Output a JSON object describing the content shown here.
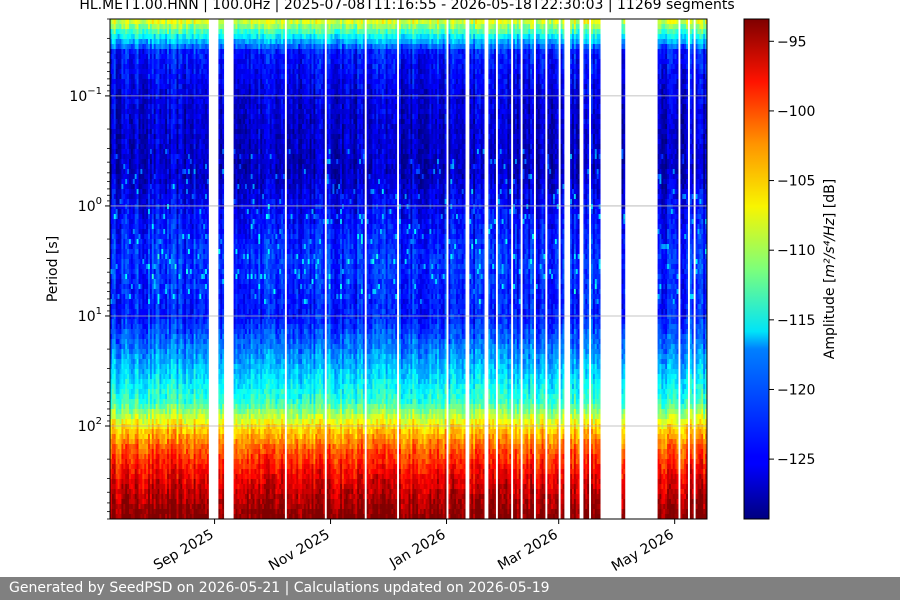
{
  "chart_data": {
    "type": "heatmap",
    "title": "HL.MET1.00.HNN | 100.0Hz | 2025-07-08T11:16:55 - 2026-05-18T22:30:03 | 11269 segments",
    "x_axis": {
      "type": "date",
      "range": [
        "2025-07-08",
        "2026-05-18"
      ],
      "ticks": [
        {
          "label": "Sep 2025",
          "date": "2025-09-01"
        },
        {
          "label": "Nov 2025",
          "date": "2025-11-01"
        },
        {
          "label": "Jan 2026",
          "date": "2026-01-01"
        },
        {
          "label": "Mar 2026",
          "date": "2026-03-01"
        },
        {
          "label": "May 2026",
          "date": "2026-05-01"
        }
      ],
      "tick_label_rotation": "30deg"
    },
    "y_axis": {
      "label": "Period [s]",
      "scale": "log",
      "inverted": true,
      "range": [
        0.02,
        700
      ],
      "ticks": [
        {
          "value": 0.1,
          "base": "10",
          "exp": "−1"
        },
        {
          "value": 1,
          "base": "10",
          "exp": "0"
        },
        {
          "value": 10,
          "base": "10",
          "exp": "1"
        },
        {
          "value": 100,
          "base": "10",
          "exp": "2"
        }
      ]
    },
    "grid": true,
    "colorbar": {
      "label_prefix": "Amplitude [",
      "label_math": "m²/s⁴/Hz",
      "label_suffix": "] [dB]",
      "colormap": "jet",
      "range": [
        -129.3,
        -93.4
      ],
      "ticks": [
        -95,
        -100,
        -105,
        -110,
        -115,
        -120,
        -125
      ],
      "tick_labels": [
        "−95",
        "−100",
        "−105",
        "−110",
        "−115",
        "−120",
        "−125"
      ]
    },
    "gaps": [
      [
        "2025-08-29",
        "2025-09-03"
      ],
      [
        "2025-09-06",
        "2025-09-11"
      ],
      [
        "2025-10-08",
        "2025-10-09"
      ],
      [
        "2025-10-29",
        "2025-10-30"
      ],
      [
        "2025-11-19",
        "2025-11-20"
      ],
      [
        "2025-12-06",
        "2025-12-07"
      ],
      [
        "2026-01-01",
        "2026-01-02"
      ],
      [
        "2026-01-11",
        "2026-01-13"
      ],
      [
        "2026-01-21",
        "2026-01-23"
      ],
      [
        "2026-01-27",
        "2026-01-28"
      ],
      [
        "2026-02-04",
        "2026-02-05"
      ],
      [
        "2026-02-09",
        "2026-02-10"
      ],
      [
        "2026-02-16",
        "2026-02-17"
      ],
      [
        "2026-02-22",
        "2026-02-23"
      ],
      [
        "2026-03-01",
        "2026-03-02"
      ],
      [
        "2026-03-04",
        "2026-03-07"
      ],
      [
        "2026-03-12",
        "2026-03-14"
      ],
      [
        "2026-03-17",
        "2026-03-18"
      ],
      [
        "2026-03-23",
        "2026-04-03"
      ],
      [
        "2026-04-05",
        "2026-04-22"
      ],
      [
        "2026-05-03",
        "2026-05-04"
      ],
      [
        "2026-05-08",
        "2026-05-09"
      ],
      [
        "2026-05-11",
        "2026-05-12"
      ]
    ],
    "typical_level_by_period": [
      {
        "period": 0.02,
        "db": -107
      },
      {
        "period": 0.04,
        "db": -124
      },
      {
        "period": 0.1,
        "db": -126
      },
      {
        "period": 0.5,
        "db": -127
      },
      {
        "period": 1,
        "db": -125
      },
      {
        "period": 3,
        "db": -123
      },
      {
        "period": 10,
        "db": -124
      },
      {
        "period": 25,
        "db": -119
      },
      {
        "period": 60,
        "db": -114
      },
      {
        "period": 100,
        "db": -106
      },
      {
        "period": 160,
        "db": -101
      },
      {
        "period": 300,
        "db": -97
      },
      {
        "period": 700,
        "db": -93
      }
    ]
  },
  "footer": {
    "text": "Generated by SeedPSD on 2026-05-21 | Calculations updated on 2026-05-19"
  }
}
